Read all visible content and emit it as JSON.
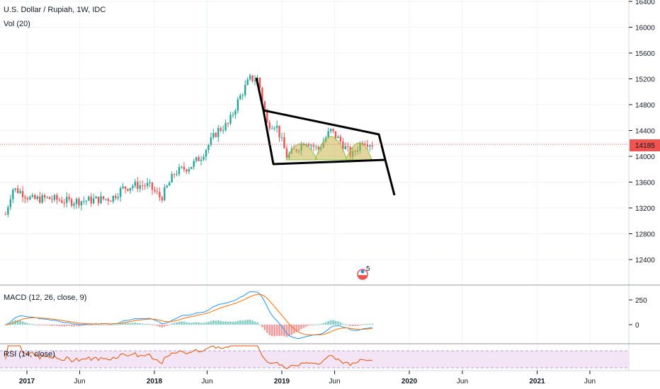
{
  "main_pane": {
    "title": "U.S. Dollar / Rupiah, 1W, IDC",
    "volume_label": "Vol (20)",
    "price_axis": {
      "ticks": [
        16400,
        16000,
        15600,
        15200,
        14800,
        14400,
        14000,
        13600,
        13200,
        12800,
        12400
      ]
    },
    "last_price": {
      "value": "14185",
      "color": "#ef5350"
    }
  },
  "time_axis": {
    "labels": [
      "2017",
      "Jun",
      "2018",
      "Jun",
      "2019",
      "Jun",
      "2020",
      "Jun",
      "2021",
      "Jun"
    ]
  },
  "macd_pane": {
    "label": "MACD (12, 26, close, 9)",
    "ticks": [
      "250",
      "0"
    ]
  },
  "rsi_pane": {
    "label": "RSI (14, close)"
  },
  "event_badge": {
    "count": "5"
  },
  "colors": {
    "up": "#26a69a",
    "down": "#ef5350",
    "macd": "#2196f3",
    "signal": "#ff6d00",
    "rsi": "#e65100",
    "rsi_band": "#f3e5f5"
  },
  "chart_data": {
    "type": "candlestick",
    "title": "U.S. Dollar / Rupiah, 1W, IDC",
    "x_range": [
      "2016-11",
      "2021-10"
    ],
    "ylim": [
      12000,
      16500
    ],
    "series": [
      {
        "name": "U.S. Dollar / Rupiah",
        "weekly_close_path": [
          {
            "date": "2016-11-01",
            "value": 13100
          },
          {
            "date": "2016-11-20",
            "value": 13500
          },
          {
            "date": "2016-12-15",
            "value": 13450
          },
          {
            "date": "2017-01-15",
            "value": 13330
          },
          {
            "date": "2017-03-01",
            "value": 13350
          },
          {
            "date": "2017-05-01",
            "value": 13300
          },
          {
            "date": "2017-07-01",
            "value": 13320
          },
          {
            "date": "2017-09-01",
            "value": 13350
          },
          {
            "date": "2017-10-01",
            "value": 13500
          },
          {
            "date": "2017-11-01",
            "value": 13550
          },
          {
            "date": "2017-12-15",
            "value": 13550
          },
          {
            "date": "2018-01-20",
            "value": 13350
          },
          {
            "date": "2018-03-01",
            "value": 13750
          },
          {
            "date": "2018-04-15",
            "value": 13850
          },
          {
            "date": "2018-05-15",
            "value": 14000
          },
          {
            "date": "2018-07-01",
            "value": 14400
          },
          {
            "date": "2018-08-01",
            "value": 14500
          },
          {
            "date": "2018-09-01",
            "value": 14900
          },
          {
            "date": "2018-10-01",
            "value": 15200
          },
          {
            "date": "2018-10-25",
            "value": 15200
          },
          {
            "date": "2018-11-20",
            "value": 14500
          },
          {
            "date": "2018-12-15",
            "value": 14500
          },
          {
            "date": "2019-01-15",
            "value": 14000
          },
          {
            "date": "2019-02-10",
            "value": 14100
          },
          {
            "date": "2019-03-10",
            "value": 14250
          },
          {
            "date": "2019-04-15",
            "value": 14100
          },
          {
            "date": "2019-05-20",
            "value": 14400
          },
          {
            "date": "2019-06-15",
            "value": 14250
          },
          {
            "date": "2019-07-20",
            "value": 14000
          },
          {
            "date": "2019-08-20",
            "value": 14250
          },
          {
            "date": "2019-09-20",
            "value": 14185
          }
        ]
      }
    ],
    "last_value": 14185,
    "indicators": [
      "Vol (20)",
      "MACD (12, 26, close, 9)",
      "RSI (14, close)"
    ],
    "macd_ticks": [
      250,
      0
    ]
  }
}
